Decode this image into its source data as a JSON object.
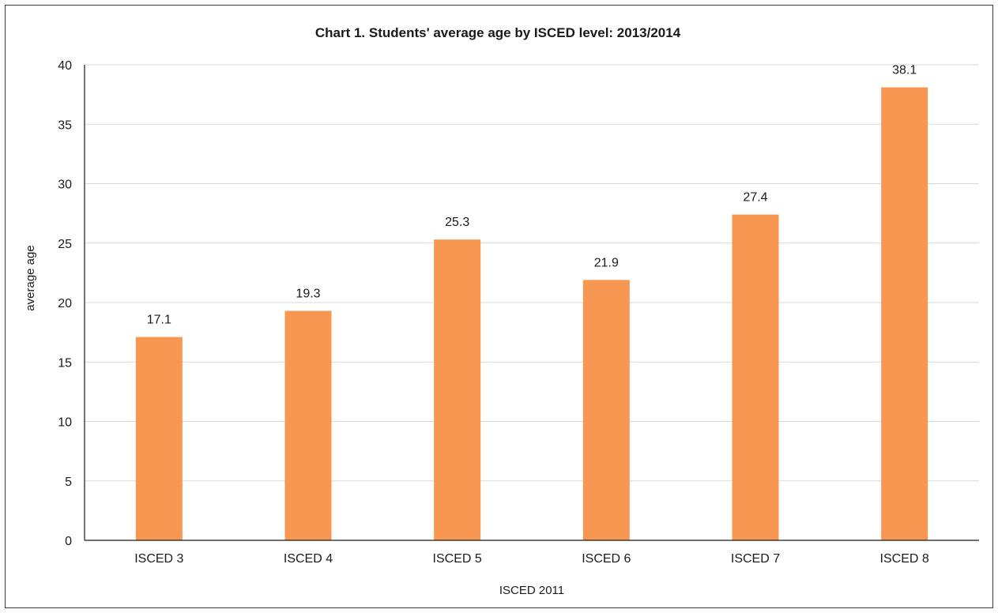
{
  "chart_data": {
    "type": "bar",
    "title": "Chart 1. Students' average age by ISCED level: 2013/2014",
    "xlabel": "ISCED 2011",
    "ylabel": "average age",
    "categories": [
      "ISCED 3",
      "ISCED 4",
      "ISCED 5",
      "ISCED 6",
      "ISCED 7",
      "ISCED 8"
    ],
    "values": [
      17.1,
      19.3,
      25.3,
      21.9,
      27.4,
      38.1
    ],
    "data_labels": [
      "17.1",
      "19.3",
      "25.3",
      "21.9",
      "27.4",
      "38.1"
    ],
    "ylim": [
      0,
      40
    ],
    "yticks": [
      0,
      5,
      10,
      15,
      20,
      25,
      30,
      35,
      40
    ],
    "grid": true,
    "legend": "none",
    "bar_color": "#f79751",
    "grid_color": "#d9d9d9",
    "axis_color": "#1a1a1a"
  }
}
